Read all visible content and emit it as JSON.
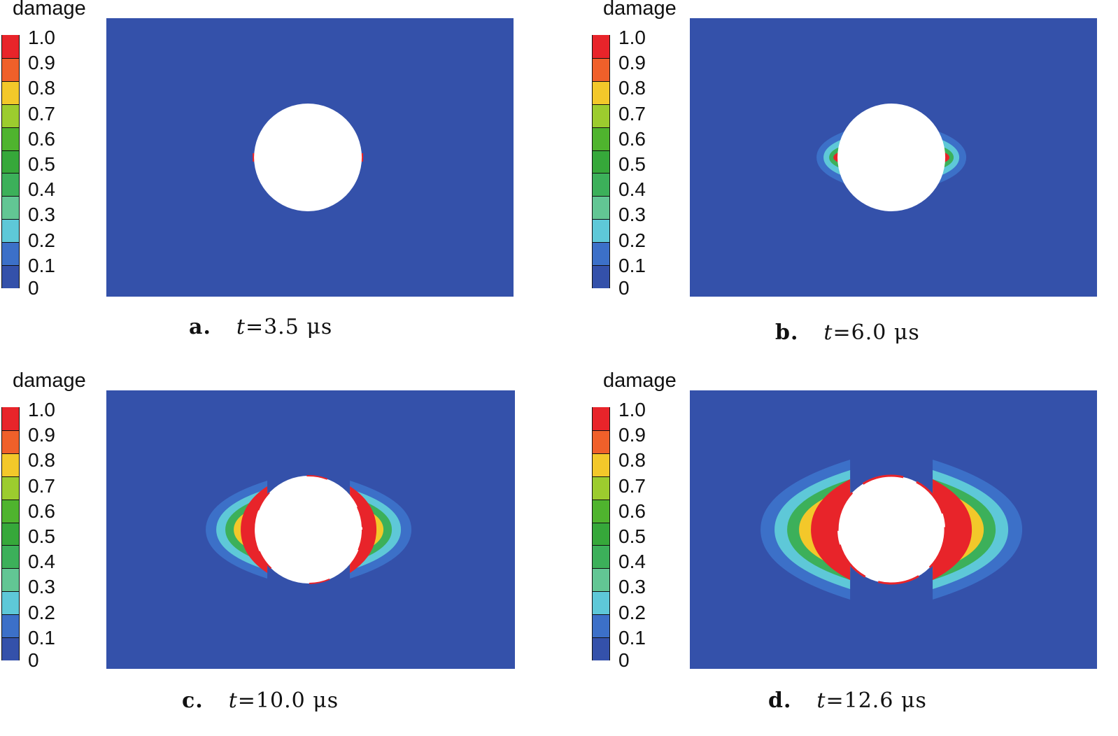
{
  "colorbar": {
    "title": "damage",
    "tick_labels": [
      "1.0",
      "0.9",
      "0.8",
      "0.7",
      "0.6",
      "0.5",
      "0.4",
      "0.3",
      "0.2",
      "0.1",
      "0"
    ],
    "colors_top_to_bottom": [
      "#e8242a",
      "#f0602a",
      "#f3c82a",
      "#9ccc2e",
      "#4fb42e",
      "#36a83a",
      "#3cb05a",
      "#62c694",
      "#5ec8d8",
      "#3c70c8",
      "#3451aa"
    ]
  },
  "panels": [
    {
      "letter": "a.",
      "time_var": "t",
      "time_value": "=3.5 μs",
      "damage_level": 0
    },
    {
      "letter": "b.",
      "time_var": "t",
      "time_value": "=6.0 μs",
      "damage_level": 1
    },
    {
      "letter": "c.",
      "time_var": "t",
      "time_value": "=10.0 μs",
      "damage_level": 2
    },
    {
      "letter": "d.",
      "time_var": "t",
      "time_value": "=12.6 μs",
      "damage_level": 3
    }
  ],
  "colors": {
    "plate": "#3451aa",
    "hole": "#ffffff",
    "zone_outer": "#3c70c8",
    "zone_mid": "#5ec8d8",
    "zone_green": "#3cb05a",
    "zone_yellow": "#f3c82a",
    "zone_red": "#e8242a"
  }
}
